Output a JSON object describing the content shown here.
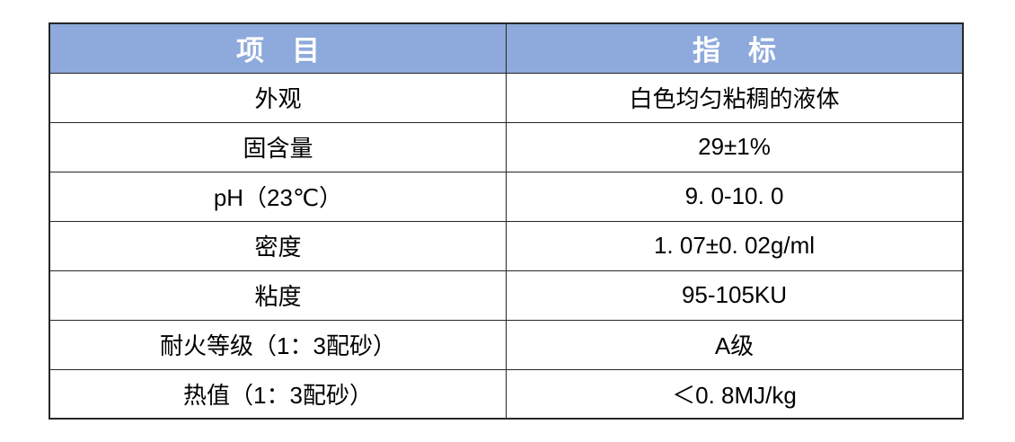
{
  "colors": {
    "header_bg": "#8EA9DB",
    "header_text": "#FFFFFF",
    "border": "#262626",
    "body_text": "#000000",
    "page_bg": "#FFFFFF"
  },
  "table": {
    "header": {
      "item": "项　目",
      "indicator": "指　标"
    },
    "rows": [
      {
        "item": "外观",
        "value": "白色均匀粘稠的液体"
      },
      {
        "item": "固含量",
        "value": "29±1%"
      },
      {
        "item": "pH（23℃）",
        "value": "9. 0-10. 0"
      },
      {
        "item": "密度",
        "value": "1. 07±0. 02g/ml"
      },
      {
        "item": "粘度",
        "value": "95-105KU"
      },
      {
        "item": "耐火等级（1：3配砂）",
        "value": "A级"
      },
      {
        "item": "热值（1：3配砂）",
        "value": "＜0. 8MJ/kg"
      }
    ]
  }
}
